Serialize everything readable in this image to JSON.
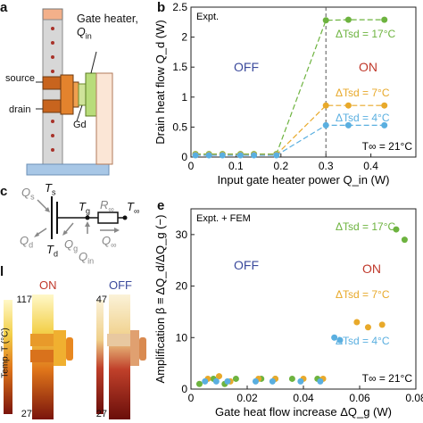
{
  "panels": {
    "a": {
      "letter": "a",
      "gate_heater_label": "Gate heater,",
      "qin_label": "Q",
      "qin_sub": "in",
      "source_label": "source",
      "drain_label": "drain",
      "gd_label": "Gd"
    },
    "b": {
      "letter": "b"
    },
    "c": {
      "letter": "c",
      "Ts_sym": "T",
      "Ts_sub": "s",
      "Qs_sym": "Q",
      "Qs_sub": "s",
      "Tg_sym": "T",
      "Tg_sub": "g",
      "Rinf_sym": "R",
      "Rinf_sub": "∞",
      "Tinf_sym": "T",
      "Tinf_sub": "∞",
      "Qd_sym": "Q",
      "Qd_sub": "d",
      "Qg_sym": "Q",
      "Qg_sub": "g",
      "Qinf_sym": "Q",
      "Qinf_sub": "∞",
      "Qin_sym": "Q",
      "Qin_sub": "in",
      "Td_sym": "T",
      "Td_sub": "d"
    },
    "d": {
      "letter": "l",
      "on_label": "ON",
      "off_label": "OFF",
      "cbar_on_max": "117",
      "cbar_on_min": "27",
      "cbar_off_max": "47",
      "cbar_off_min": "27",
      "cbar_title": "Temp. T (°C)"
    },
    "e": {
      "letter": "e"
    }
  },
  "colors": {
    "green": "#6db33f",
    "orange": "#e8a92a",
    "blue": "#5aafe0",
    "off_text": "#3b4a9c",
    "on_text": "#c0392b"
  },
  "chart_data": [
    {
      "type": "scatter",
      "panel": "b",
      "tag": "Expt.",
      "xlabel": "Input gate heater power Q_in (W)",
      "ylabel": "Drain heat flow Q_d (W)",
      "xlim": [
        0,
        0.5
      ],
      "ylim": [
        0,
        2.5
      ],
      "xticks": [
        "0",
        "0.1",
        "0.2",
        "0.3",
        "0.4"
      ],
      "yticks": [
        "0",
        "0.5",
        "1",
        "1.5",
        "2",
        "2.5"
      ],
      "off_label": "OFF",
      "on_label": "ON",
      "tinf_label": "T∞ = 21°C",
      "series": [
        {
          "name": "ΔTsd = 17°C",
          "color": "#6db33f",
          "x": [
            0.01,
            0.04,
            0.07,
            0.11,
            0.14,
            0.19,
            0.3,
            0.35,
            0.43
          ],
          "y": [
            0.05,
            0.05,
            0.05,
            0.05,
            0.05,
            0.05,
            2.28,
            2.29,
            2.29
          ]
        },
        {
          "name": "ΔTsd = 7°C",
          "color": "#e8a92a",
          "x": [
            0.01,
            0.04,
            0.07,
            0.11,
            0.14,
            0.19,
            0.3,
            0.35,
            0.43
          ],
          "y": [
            0.04,
            0.04,
            0.04,
            0.04,
            0.04,
            0.04,
            0.86,
            0.86,
            0.86
          ]
        },
        {
          "name": "ΔTsd = 4°C",
          "color": "#5aafe0",
          "x": [
            0.01,
            0.04,
            0.07,
            0.11,
            0.14,
            0.19,
            0.3,
            0.35,
            0.43
          ],
          "y": [
            0.03,
            0.03,
            0.03,
            0.03,
            0.03,
            0.03,
            0.53,
            0.53,
            0.53
          ]
        }
      ]
    },
    {
      "type": "scatter",
      "panel": "e",
      "tag": "Expt. + FEM",
      "xlabel": "Gate heat flow increase ΔQ_g (W)",
      "ylabel": "Amplification β ≡ ΔQ_d/ΔQ_g (−)",
      "xlim": [
        0,
        0.08
      ],
      "ylim": [
        0,
        35
      ],
      "xticks": [
        "0",
        "0.02",
        "0.04",
        "0.06",
        "0.08"
      ],
      "yticks": [
        "0",
        "10",
        "20",
        "30"
      ],
      "off_label": "OFF",
      "on_label": "ON",
      "tinf_label": "T∞ = 21°C",
      "series": [
        {
          "name": "ΔTsd = 17°C",
          "color": "#6db33f",
          "x": [
            0.003,
            0.008,
            0.012,
            0.016,
            0.025,
            0.03,
            0.036,
            0.045,
            0.073,
            0.076
          ],
          "y": [
            1.0,
            2.0,
            1.0,
            2.0,
            2.0,
            2.0,
            2.0,
            2.0,
            31.0,
            29.0
          ]
        },
        {
          "name": "ΔTsd = 7°C",
          "color": "#e8a92a",
          "x": [
            0.006,
            0.01,
            0.014,
            0.024,
            0.03,
            0.04,
            0.047,
            0.059,
            0.063,
            0.068
          ],
          "y": [
            2.0,
            2.5,
            1.5,
            2.0,
            2.0,
            2.0,
            2.0,
            13.0,
            12.0,
            12.5
          ]
        },
        {
          "name": "ΔTsd = 4°C",
          "color": "#5aafe0",
          "x": [
            0.005,
            0.009,
            0.013,
            0.023,
            0.029,
            0.039,
            0.046,
            0.051,
            0.053
          ],
          "y": [
            1.5,
            1.5,
            1.5,
            1.5,
            1.5,
            1.5,
            1.5,
            10.0,
            9.5
          ]
        }
      ]
    }
  ]
}
